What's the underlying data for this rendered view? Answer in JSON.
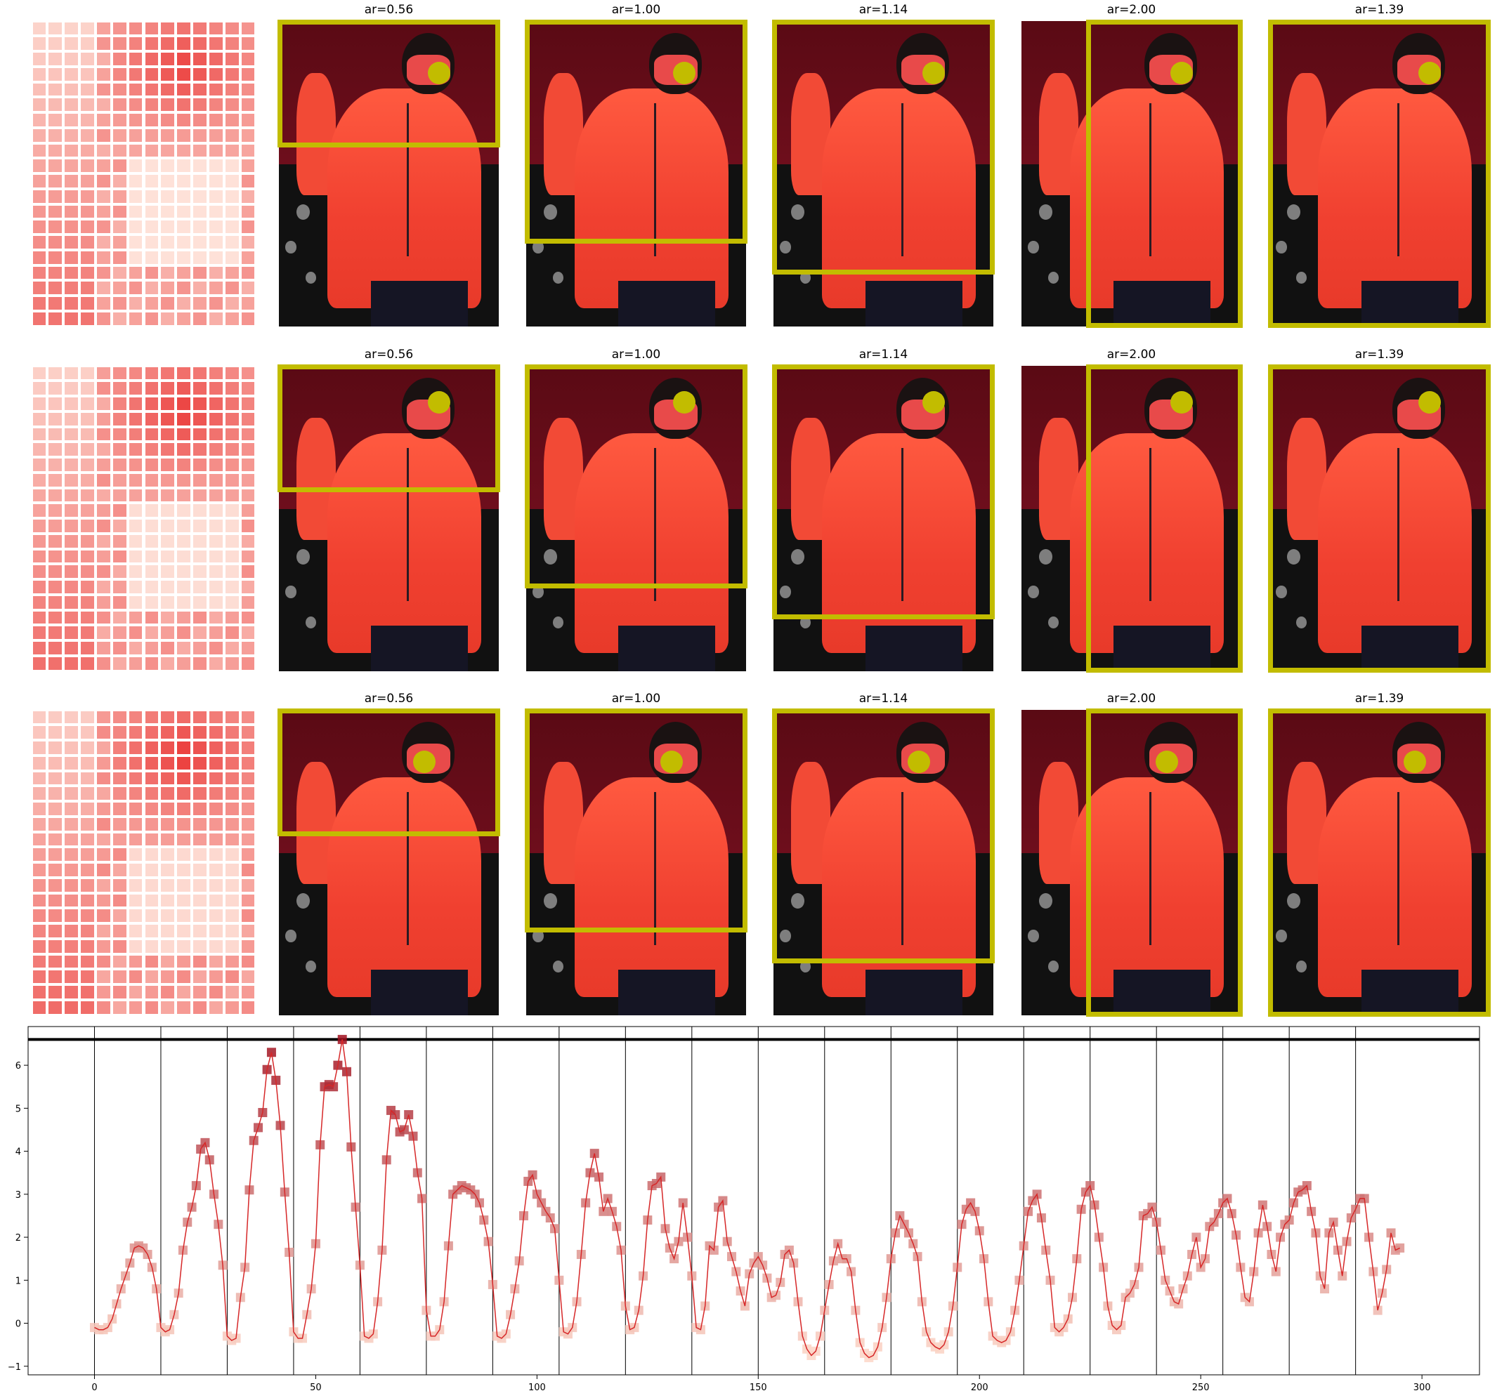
{
  "rows": [
    {
      "titles": [
        "ar=0.56",
        "ar=1.00",
        "ar=1.14",
        "ar=2.00",
        "ar=1.39"
      ]
    },
    {
      "titles": [
        "ar=0.56",
        "ar=1.00",
        "ar=1.14",
        "ar=2.00",
        "ar=1.39"
      ]
    },
    {
      "titles": [
        "ar=0.56",
        "ar=1.00",
        "ar=1.14",
        "ar=2.00",
        "ar=1.39"
      ]
    }
  ],
  "colors": {
    "crop": "#c2bc00",
    "line": "#d62728",
    "threshold": "#000000",
    "grid_cell": "#f0826a"
  },
  "chart_data": {
    "type": "line",
    "title": "",
    "xlabel": "",
    "ylabel": "",
    "xlim": [
      -15,
      313
    ],
    "ylim": [
      -1.2,
      6.9
    ],
    "xticks": [
      0,
      50,
      100,
      150,
      200,
      250,
      300
    ],
    "yticks": [
      -1,
      0,
      1,
      2,
      3,
      4,
      5,
      6
    ],
    "vlines": [
      0,
      15,
      30,
      45,
      60,
      75,
      90,
      105,
      120,
      135,
      150,
      165,
      180,
      195,
      210,
      225,
      240,
      255,
      270,
      285
    ],
    "hline": 6.6,
    "series": [
      {
        "values": [
          -0.1,
          -0.15,
          -0.15,
          -0.1,
          0.1,
          0.45,
          0.8,
          1.1,
          1.4,
          1.75,
          1.8,
          1.75,
          1.6,
          1.3,
          0.8,
          -0.1,
          -0.2,
          -0.15,
          0.2,
          0.7,
          1.7,
          2.35,
          2.7,
          3.2,
          4.05,
          4.2,
          3.8,
          3.0,
          2.3,
          1.35,
          -0.3,
          -0.4,
          -0.35,
          0.6,
          1.3,
          3.1,
          4.25,
          4.55,
          4.9,
          5.9,
          6.3,
          5.65,
          4.6,
          3.05,
          1.65,
          -0.2,
          -0.35,
          -0.35,
          0.2,
          0.8,
          1.85,
          4.15,
          5.5,
          5.55,
          5.5,
          6.0,
          6.6,
          5.85,
          4.1,
          2.7,
          1.35,
          -0.3,
          -0.35,
          -0.25,
          0.5,
          1.7,
          3.8,
          4.95,
          4.85,
          4.45,
          4.5,
          4.85,
          4.35,
          3.5,
          2.9,
          0.3,
          -0.3,
          -0.3,
          -0.15,
          0.5,
          1.8,
          3.0,
          3.1,
          3.2,
          3.15,
          3.1,
          3.0,
          2.8,
          2.4,
          1.9,
          0.9,
          -0.3,
          -0.35,
          -0.25,
          0.2,
          0.8,
          1.45,
          2.5,
          3.3,
          3.45,
          3.0,
          2.8,
          2.6,
          2.45,
          2.2,
          1.0,
          -0.2,
          -0.25,
          -0.1,
          0.5,
          1.6,
          2.8,
          3.5,
          3.95,
          3.4,
          2.6,
          2.9,
          2.6,
          2.25,
          1.7,
          0.4,
          -0.15,
          -0.1,
          0.3,
          1.1,
          2.4,
          3.2,
          3.25,
          3.4,
          2.2,
          1.75,
          1.5,
          1.9,
          2.8,
          2.0,
          1.1,
          -0.1,
          -0.15,
          0.4,
          1.8,
          1.7,
          2.7,
          2.85,
          1.9,
          1.55,
          1.2,
          0.75,
          0.4,
          1.15,
          1.4,
          1.55,
          1.35,
          1.05,
          0.6,
          0.65,
          0.95,
          1.6,
          1.7,
          1.4,
          0.5,
          -0.3,
          -0.6,
          -0.75,
          -0.65,
          -0.3,
          0.3,
          0.9,
          1.45,
          1.85,
          1.5,
          1.5,
          1.2,
          0.3,
          -0.45,
          -0.7,
          -0.8,
          -0.75,
          -0.55,
          -0.1,
          0.6,
          1.5,
          2.1,
          2.5,
          2.3,
          2.1,
          1.85,
          1.55,
          0.5,
          -0.2,
          -0.45,
          -0.55,
          -0.6,
          -0.5,
          -0.2,
          0.4,
          1.3,
          2.3,
          2.65,
          2.8,
          2.6,
          2.15,
          1.5,
          0.5,
          -0.3,
          -0.4,
          -0.45,
          -0.4,
          -0.2,
          0.3,
          1.0,
          1.8,
          2.6,
          2.85,
          3.0,
          2.45,
          1.7,
          1.0,
          -0.1,
          -0.2,
          -0.1,
          0.1,
          0.6,
          1.5,
          2.65,
          3.05,
          3.2,
          2.75,
          2.0,
          1.3,
          0.4,
          -0.05,
          -0.15,
          -0.05,
          0.6,
          0.7,
          0.9,
          1.3,
          2.5,
          2.55,
          2.7,
          2.35,
          1.7,
          1.0,
          0.75,
          0.5,
          0.45,
          0.8,
          1.1,
          1.6,
          2.0,
          1.3,
          1.5,
          2.25,
          2.35,
          2.55,
          2.8,
          2.9,
          2.55,
          2.05,
          1.3,
          0.6,
          0.5,
          1.2,
          2.1,
          2.75,
          2.25,
          1.6,
          1.2,
          2.0,
          2.3,
          2.4,
          2.8,
          3.05,
          3.1,
          3.2,
          2.6,
          2.1,
          1.1,
          0.8,
          2.1,
          2.35,
          1.7,
          1.1,
          1.9,
          2.45,
          2.65,
          2.9,
          2.9,
          2.0,
          1.2,
          0.3,
          0.7,
          1.25,
          2.1,
          1.7,
          1.75
        ]
      }
    ]
  }
}
